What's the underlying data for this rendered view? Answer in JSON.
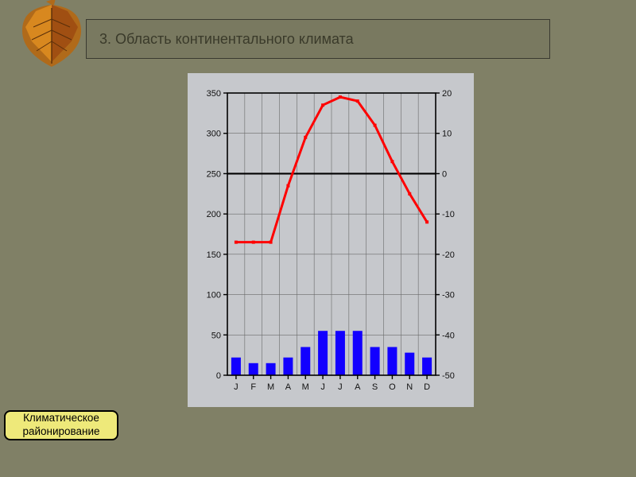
{
  "slide": {
    "title": "3. Область континентального климата",
    "background": "#808066",
    "frame_border": "#3a3a30"
  },
  "button": {
    "label": "Климатическое\nрайонирование",
    "bg": "#EEE97A",
    "border": "#000000"
  },
  "chart": {
    "type": "climate-diagram",
    "plot_bg": "#c6c8cc",
    "axis_color": "#000000",
    "grid_color": "#6a6a6a",
    "tick_font_size": 11,
    "x_labels": [
      "J",
      "F",
      "M",
      "A",
      "M",
      "J",
      "J",
      "A",
      "S",
      "O",
      "N",
      "D"
    ],
    "left_axis": {
      "min": 0,
      "max": 350,
      "step": 50,
      "ticks": [
        0,
        50,
        100,
        150,
        200,
        250,
        300,
        350
      ]
    },
    "right_axis": {
      "min": -50,
      "max": 20,
      "step": 10,
      "ticks": [
        -50,
        -40,
        -30,
        -20,
        -10,
        0,
        10,
        20
      ]
    },
    "bars": {
      "color": "#1200ff",
      "width_ratio": 0.55,
      "values_mm": [
        22,
        15,
        15,
        22,
        35,
        55,
        55,
        55,
        35,
        35,
        28,
        22
      ]
    },
    "line": {
      "color": "#ff0000",
      "width": 3,
      "values_c": [
        -17,
        -17,
        -17,
        -3,
        9,
        17,
        19,
        18,
        12,
        3,
        -5,
        -12
      ]
    }
  }
}
